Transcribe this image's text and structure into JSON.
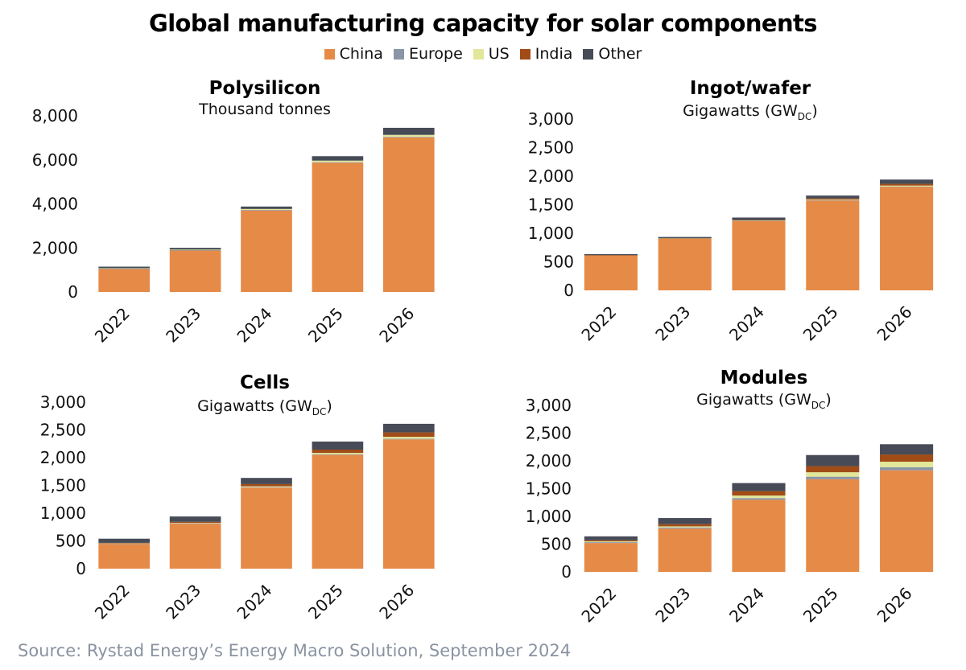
{
  "title": "Global manufacturing capacity for solar components",
  "source": "Source: Rystad Energy’s Energy Macro Solution, September 2024",
  "legend": [
    {
      "label": "China",
      "color": "#E68A47"
    },
    {
      "label": "Europe",
      "color": "#8A95A5"
    },
    {
      "label": "US",
      "color": "#E2E79A"
    },
    {
      "label": "India",
      "color": "#A14B17"
    },
    {
      "label": "Other",
      "color": "#464B57"
    }
  ],
  "chart_data": [
    {
      "type": "bar",
      "stacked": true,
      "title": "Polysilicon",
      "subtitle_text": "Thousand tonnes",
      "categories": [
        "2022",
        "2023",
        "2024",
        "2025",
        "2026"
      ],
      "ylim": [
        0,
        8000
      ],
      "yticks": [
        0,
        2000,
        4000,
        6000,
        8000
      ],
      "ytick_labels": [
        "0",
        "2,000",
        "4,000",
        "6,000",
        "8,000"
      ],
      "series": [
        {
          "name": "China",
          "values": [
            1040,
            1880,
            3700,
            5870,
            7020
          ]
        },
        {
          "name": "Europe",
          "values": [
            20,
            20,
            25,
            25,
            25
          ]
        },
        {
          "name": "US",
          "values": [
            20,
            25,
            45,
            70,
            90
          ]
        },
        {
          "name": "India",
          "values": [
            0,
            0,
            0,
            0,
            0
          ]
        },
        {
          "name": "Other",
          "values": [
            70,
            80,
            110,
            200,
            320
          ]
        }
      ]
    },
    {
      "type": "bar",
      "stacked": true,
      "title": "Ingot/wafer",
      "subtitle_text": "Gigawatts (GW",
      "subtitle_sub": "DC",
      "subtitle_end": ")",
      "categories": [
        "2022",
        "2023",
        "2024",
        "2025",
        "2026"
      ],
      "ylim": [
        0,
        3000
      ],
      "yticks": [
        0,
        500,
        1000,
        1500,
        2000,
        2500,
        3000
      ],
      "ytick_labels": [
        "0",
        "500",
        "1,000",
        "1,500",
        "2,000",
        "2,500",
        "3,000"
      ],
      "series": [
        {
          "name": "China",
          "values": [
            615,
            905,
            1215,
            1575,
            1815
          ]
        },
        {
          "name": "Europe",
          "values": [
            2,
            3,
            4,
            5,
            5
          ]
        },
        {
          "name": "US",
          "values": [
            0,
            2,
            5,
            10,
            15
          ]
        },
        {
          "name": "India",
          "values": [
            2,
            5,
            10,
            20,
            30
          ]
        },
        {
          "name": "Other",
          "values": [
            16,
            20,
            41,
            50,
            75
          ]
        }
      ]
    },
    {
      "type": "bar",
      "stacked": true,
      "title": "Cells",
      "subtitle_text": "Gigawatts (GW",
      "subtitle_sub": "DC",
      "subtitle_end": ")",
      "categories": [
        "2022",
        "2023",
        "2024",
        "2025",
        "2026"
      ],
      "ylim": [
        0,
        3000
      ],
      "yticks": [
        0,
        500,
        1000,
        1500,
        2000,
        2500,
        3000
      ],
      "ytick_labels": [
        "0",
        "500",
        "1,000",
        "1,500",
        "2,000",
        "2,500",
        "3,000"
      ],
      "series": [
        {
          "name": "China",
          "values": [
            445,
            810,
            1460,
            2050,
            2330
          ]
        },
        {
          "name": "Europe",
          "values": [
            5,
            5,
            8,
            10,
            10
          ]
        },
        {
          "name": "US",
          "values": [
            5,
            8,
            15,
            25,
            35
          ]
        },
        {
          "name": "India",
          "values": [
            10,
            20,
            40,
            60,
            80
          ]
        },
        {
          "name": "Other",
          "values": [
            75,
            97,
            112,
            145,
            155
          ]
        }
      ]
    },
    {
      "type": "bar",
      "stacked": true,
      "title": "Modules",
      "subtitle_text": "Gigawatts (GW",
      "subtitle_sub": "DC",
      "subtitle_end": ")",
      "categories": [
        "2022",
        "2023",
        "2024",
        "2025",
        "2026"
      ],
      "ylim": [
        0,
        3000
      ],
      "yticks": [
        0,
        500,
        1000,
        1500,
        2000,
        2500,
        3000
      ],
      "ytick_labels": [
        "0",
        "500",
        "1,000",
        "1,500",
        "2,000",
        "2,500",
        "3,000"
      ],
      "series": [
        {
          "name": "China",
          "values": [
            520,
            780,
            1300,
            1670,
            1830
          ]
        },
        {
          "name": "Europe",
          "values": [
            15,
            20,
            30,
            45,
            55
          ]
        },
        {
          "name": "US",
          "values": [
            15,
            20,
            45,
            80,
            100
          ]
        },
        {
          "name": "India",
          "values": [
            20,
            40,
            80,
            110,
            130
          ]
        },
        {
          "name": "Other",
          "values": [
            70,
            110,
            145,
            200,
            185
          ]
        }
      ]
    }
  ]
}
